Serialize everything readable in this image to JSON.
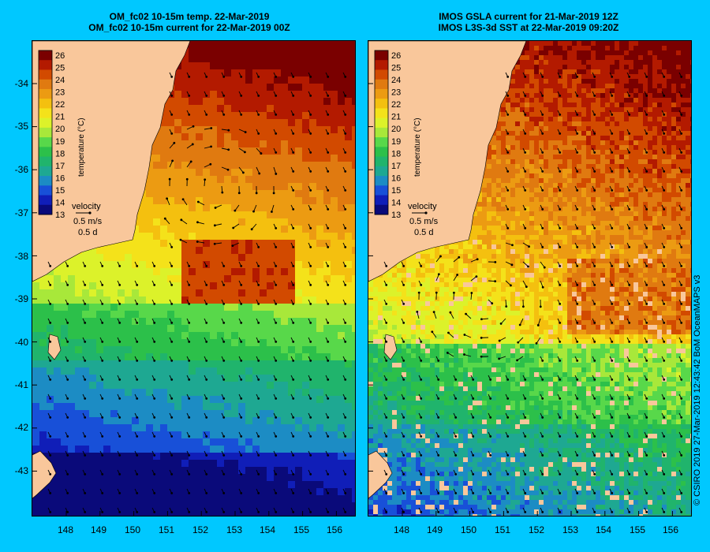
{
  "colors": {
    "page_background": "#00c8ff",
    "land": "#f9c79b",
    "scale": [
      "#7a0000",
      "#b31a00",
      "#d24a00",
      "#e07a10",
      "#ec9b12",
      "#f4c00f",
      "#f4e21a",
      "#dcf22a",
      "#a8e83a",
      "#58d84a",
      "#2cc04a",
      "#20b46c",
      "#1ea892",
      "#1c8cc4",
      "#1850d8",
      "#101eb8",
      "#0a0a7a"
    ]
  },
  "left_panel": {
    "title_line1": "OM_fc02 10-15m temp. 22-Mar-2019",
    "title_line2": "OM_fc02 10-15m current for 22-Mar-2019 00Z",
    "colorbar": {
      "ticks": [
        "26",
        "25",
        "24",
        "23",
        "22",
        "21",
        "20",
        "19",
        "18",
        "17",
        "16",
        "15",
        "14",
        "13"
      ],
      "label": "temperature (°C)"
    },
    "velocity_legend": {
      "title": "velocity",
      "speed": "0.5 m/s",
      "duration": "0.5 d"
    }
  },
  "right_panel": {
    "title_line1": "IMOS GSLA current for 21-Mar-2019 12Z",
    "title_line2": "IMOS L3S-3d SST at 22-Mar-2019 09:20Z",
    "colorbar": {
      "ticks": [
        "26",
        "25",
        "24",
        "23",
        "22",
        "21",
        "20",
        "19",
        "18",
        "17",
        "16",
        "15",
        "14",
        "13"
      ],
      "label": "temperature (°C)"
    },
    "velocity_legend": {
      "title": "velocity",
      "speed": "0.5 m/s",
      "duration": "0.5 d"
    }
  },
  "axes": {
    "lat_ticks": [
      "-34",
      "-35",
      "-36",
      "-37",
      "-38",
      "-39",
      "-40",
      "-41",
      "-42",
      "-43"
    ],
    "lon_ticks": [
      "148",
      "149",
      "150",
      "151",
      "152",
      "153",
      "154",
      "155",
      "156"
    ]
  },
  "credit": "© CSIRO 2019   27-Mar-2019 12:43:42 BoM OceanMAPS v3"
}
